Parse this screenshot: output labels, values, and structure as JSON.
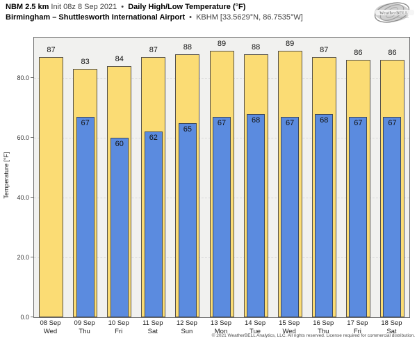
{
  "header": {
    "model": "NBM 2.5 km",
    "init": "Init 08z 8 Sep 2021",
    "separator": "•",
    "product": "Daily High/Low Temperature (°F)",
    "station": "Birmingham – Shuttlesworth International Airport",
    "station_meta": "KBHM [33.5629°N, 86.7535°W]"
  },
  "logo": {
    "brand": "WeatherBELL",
    "sub": "Analytics LLC"
  },
  "chart_data": {
    "type": "bar",
    "title": "Daily High/Low Temperature (°F)",
    "ylabel": "Temperature [°F]",
    "ylim": [
      0,
      93.5
    ],
    "yticks": [
      0,
      20,
      40,
      60,
      80
    ],
    "ytick_labels": [
      "0.0",
      "20.0",
      "40.0",
      "60.0",
      "80.0"
    ],
    "grid": "horizontal dashed at yticks",
    "legend": "none",
    "categories": [
      {
        "date": "08 Sep",
        "day": "Wed"
      },
      {
        "date": "09 Sep",
        "day": "Thu"
      },
      {
        "date": "10 Sep",
        "day": "Fri"
      },
      {
        "date": "11 Sep",
        "day": "Sat"
      },
      {
        "date": "12 Sep",
        "day": "Sun"
      },
      {
        "date": "13 Sep",
        "day": "Mon"
      },
      {
        "date": "14 Sep",
        "day": "Tue"
      },
      {
        "date": "15 Sep",
        "day": "Wed"
      },
      {
        "date": "16 Sep",
        "day": "Thu"
      },
      {
        "date": "17 Sep",
        "day": "Fri"
      },
      {
        "date": "18 Sep",
        "day": "Sat"
      }
    ],
    "series": [
      {
        "name": "High",
        "values": [
          87,
          83,
          84,
          87,
          88,
          89,
          88,
          89,
          87,
          86,
          86
        ]
      },
      {
        "name": "Low",
        "values": [
          null,
          67,
          60,
          62,
          65,
          67,
          68,
          67,
          68,
          67,
          67
        ]
      }
    ]
  },
  "colors": {
    "high_bar": "#fbdc74",
    "high_bar_border": "#55514a",
    "low_bar": "#5b8bdf",
    "low_bar_border": "#3d4a5d",
    "plot_bg": "#f1f1ef",
    "frame_border": "#6a6a6a",
    "gridline": "#d9d9d9"
  },
  "footer": {
    "copyright": "© 2021 WeatherBELL Analytics, LLC. All rights reserved. License required for commercial distribution."
  }
}
